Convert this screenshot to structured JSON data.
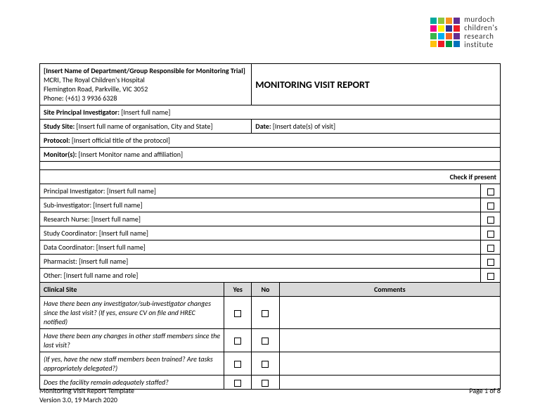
{
  "logo": {
    "text_l1": "murdoch",
    "text_l2": "children's",
    "text_l3": "research",
    "text_l4": "institute",
    "colors": [
      "#00a79d",
      "#8dc63f",
      "#f7941e",
      "#652d90",
      "#ec008c",
      "#fff200",
      "#2e3192",
      "#ed1c24",
      "#39b54a",
      "#00aeef",
      "#f26522",
      "#662d91",
      "#ffc20e",
      "#ec1c24",
      "#009444",
      "#0072bc"
    ]
  },
  "header": {
    "dept_line": "[Insert Name of Department/Group Responsible for Monitoring Trial]",
    "org": "MCRI, The Royal Children's Hospital",
    "addr": "Flemington Road, Parkville, VIC 3052",
    "phone": "Phone: (+61) 3 9936 6328",
    "title": "MONITORING VISIT REPORT"
  },
  "rows": {
    "spi_label": "Site Principal Investigator:",
    "spi_val": " [Insert full name]",
    "site_label": "Study Site:",
    "site_val": " [Insert full name of organisation, City and State]",
    "date_label": "Date:",
    "date_val": " [Insert date(s) of visit]",
    "protocol_label": "Protocol:",
    "protocol_val": " [Insert official title of the protocol]",
    "monitor_label": "Monitor(s):",
    "monitor_val": " [Insert Monitor name and affiliation]"
  },
  "check_header": "Check if present",
  "attendees": [
    "Principal Investigator: [Insert full name]",
    "Sub-investigator: [Insert full name]",
    "Research Nurse: [Insert full name]",
    "Study Coordinator: [Insert full name]",
    "Data Coordinator: [Insert full name]",
    "Pharmacist: [Insert full name]",
    "Other: [Insert full name and role]"
  ],
  "section": {
    "title": "Clinical Site",
    "yes": "Yes",
    "no": "No",
    "comments": "Comments"
  },
  "questions": [
    "Have there been any investigator/sub-investigator changes since the last visit? (If yes, ensure CV on file and HREC notified)",
    "Have there been any changes in other staff members since the last visit?",
    " (If yes, have the new staff members been trained? Are tasks appropriately delegated?)",
    "Does the facility remain adequately staffed?"
  ],
  "footer": {
    "left_l1": "Monitoring Visit Report Template",
    "left_l2": "Version 3.0, 19 March 2020",
    "right": "Page 1 of 8"
  }
}
